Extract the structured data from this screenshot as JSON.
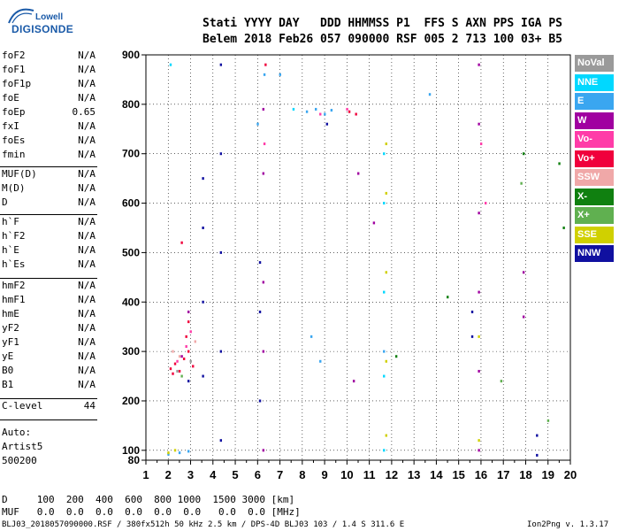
{
  "logo": {
    "lowell": "Lowell",
    "digisonde": "DIGISONDE"
  },
  "header": {
    "line1": "Stati YYYY DAY   DDD HHMMSS P1  FFS S AXN PPS IGA PS",
    "line2": "Belem 2018 Feb26 057 090000 RSF 005 2 713 100 03+ B5"
  },
  "params": [
    {
      "name": "foF2",
      "value": "N/A"
    },
    {
      "name": "foF1",
      "value": "N/A"
    },
    {
      "name": "foF1p",
      "value": "N/A"
    },
    {
      "name": "foE",
      "value": "N/A"
    },
    {
      "name": "foEp",
      "value": "0.65"
    },
    {
      "name": "fxI",
      "value": "N/A"
    },
    {
      "name": "foEs",
      "value": "N/A"
    },
    {
      "name": "fmin",
      "value": "N/A"
    },
    {
      "name": "MUF(D)",
      "value": "N/A"
    },
    {
      "name": "M(D)",
      "value": "N/A"
    },
    {
      "name": "D",
      "value": "N/A"
    },
    {
      "name": "h`F",
      "value": "N/A"
    },
    {
      "name": "h`F2",
      "value": "N/A"
    },
    {
      "name": "h`E",
      "value": "N/A"
    },
    {
      "name": "h`Es",
      "value": "N/A"
    },
    {
      "name": "hmF2",
      "value": "N/A"
    },
    {
      "name": "hmF1",
      "value": "N/A"
    },
    {
      "name": "hmE",
      "value": "N/A"
    },
    {
      "name": "yF2",
      "value": "N/A"
    },
    {
      "name": "yF1",
      "value": "N/A"
    },
    {
      "name": "yE",
      "value": "N/A"
    },
    {
      "name": "B0",
      "value": "N/A"
    },
    {
      "name": "B1",
      "value": "N/A"
    },
    {
      "name": "C-level",
      "value": "44"
    }
  ],
  "auto": {
    "line1": "Auto:",
    "line2": "Artist5",
    "line3": "500200"
  },
  "footer": {
    "d_row": "D     100  200  400  600  800 1000  1500 3000 [km]",
    "muf_row": "MUF   0.0  0.0  0.0  0.0  0.0  0.0   0.0  0.0 [MHz]",
    "file_line": "BLJ03_2018057090000.RSF / 380fx512h 50 kHz 2.5 km / DPS-4D BLJ03 103 / 1.4 S 311.6 E",
    "version": "Ion2Png v. 1.3.17"
  },
  "legend": [
    {
      "label": "NoVal",
      "color": "#9a9a9a"
    },
    {
      "label": "NNE",
      "color": "#00d8ff"
    },
    {
      "label": "E",
      "color": "#3aa6f0"
    },
    {
      "label": "W",
      "color": "#a000a0"
    },
    {
      "label": "Vo-",
      "color": "#ff3ca8"
    },
    {
      "label": "Vo+",
      "color": "#f0003c"
    },
    {
      "label": "SSW",
      "color": "#f0a8a8"
    },
    {
      "label": "X-",
      "color": "#108010"
    },
    {
      "label": "X+",
      "color": "#60b050"
    },
    {
      "label": "SSE",
      "color": "#d0d000"
    },
    {
      "label": "NNW",
      "color": "#1010a0"
    }
  ],
  "chart_data": {
    "type": "scatter",
    "xlabel": "",
    "ylabel": "",
    "x_ticks": [
      "1",
      "2",
      "3",
      "4",
      "5",
      "6",
      "7",
      "8",
      "9",
      "10",
      "11",
      "12",
      "13",
      "14",
      "15",
      "16",
      "17",
      "18",
      "19",
      "20"
    ],
    "y_ticks": [
      "80",
      "100",
      "200",
      "300",
      "400",
      "500",
      "600",
      "700",
      "800",
      "900"
    ],
    "xlim": [
      1,
      20
    ],
    "ylim": [
      80,
      900
    ],
    "grid": "dotted",
    "legend_position": "right",
    "series": [
      {
        "name": "NNW",
        "color": "#1010a0",
        "points": [
          [
            4.35,
            120
          ],
          [
            4.35,
            300
          ],
          [
            4.35,
            500
          ],
          [
            4.35,
            700
          ],
          [
            4.35,
            880
          ],
          [
            3.55,
            250
          ],
          [
            3.55,
            400
          ],
          [
            3.55,
            550
          ],
          [
            3.55,
            650
          ],
          [
            6.1,
            200
          ],
          [
            6.1,
            380
          ],
          [
            6.1,
            480
          ],
          [
            9.1,
            760
          ],
          [
            2.9,
            240
          ],
          [
            18.5,
            90
          ],
          [
            18.5,
            130
          ],
          [
            15.6,
            330
          ],
          [
            15.6,
            380
          ]
        ]
      },
      {
        "name": "W",
        "color": "#a000a0",
        "points": [
          [
            6.25,
            100
          ],
          [
            6.25,
            300
          ],
          [
            6.25,
            440
          ],
          [
            6.25,
            660
          ],
          [
            6.25,
            790
          ],
          [
            15.9,
            100
          ],
          [
            15.9,
            260
          ],
          [
            15.9,
            420
          ],
          [
            15.9,
            580
          ],
          [
            15.9,
            760
          ],
          [
            15.9,
            880
          ],
          [
            17.9,
            370
          ],
          [
            17.9,
            460
          ],
          [
            10.3,
            240
          ],
          [
            10.5,
            660
          ],
          [
            11.2,
            560
          ],
          [
            2.9,
            380
          ],
          [
            2.6,
            290
          ]
        ]
      },
      {
        "name": "Vo+",
        "color": "#f0003c",
        "points": [
          [
            2.1,
            265
          ],
          [
            2.3,
            275
          ],
          [
            2.5,
            260
          ],
          [
            2.7,
            285
          ],
          [
            2.9,
            300
          ],
          [
            3.1,
            270
          ],
          [
            2.8,
            330
          ],
          [
            2.9,
            360
          ],
          [
            2.2,
            255
          ],
          [
            10.1,
            785
          ],
          [
            10.4,
            780
          ],
          [
            6.35,
            880
          ],
          [
            2.6,
            520
          ]
        ]
      },
      {
        "name": "Vo-",
        "color": "#ff3ca8",
        "points": [
          [
            2.4,
            280
          ],
          [
            2.8,
            310
          ],
          [
            3.0,
            340
          ],
          [
            8.8,
            780
          ],
          [
            10.0,
            790
          ],
          [
            16.0,
            720
          ],
          [
            16.2,
            600
          ],
          [
            6.3,
            720
          ]
        ]
      },
      {
        "name": "E",
        "color": "#3aa6f0",
        "points": [
          [
            2.0,
            92
          ],
          [
            2.5,
            95
          ],
          [
            2.9,
            98
          ],
          [
            8.2,
            785
          ],
          [
            8.6,
            790
          ],
          [
            9.0,
            780
          ],
          [
            9.3,
            788
          ],
          [
            8.4,
            330
          ],
          [
            8.8,
            280
          ],
          [
            6.3,
            860
          ],
          [
            6.0,
            760
          ],
          [
            7.0,
            860
          ],
          [
            13.7,
            820
          ],
          [
            11.65,
            300
          ]
        ]
      },
      {
        "name": "NNE",
        "color": "#00d8ff",
        "points": [
          [
            11.65,
            100
          ],
          [
            11.65,
            250
          ],
          [
            11.65,
            420
          ],
          [
            11.65,
            600
          ],
          [
            11.65,
            700
          ],
          [
            7.6,
            790
          ],
          [
            2.1,
            880
          ]
        ]
      },
      {
        "name": "SSE",
        "color": "#d0d000",
        "points": [
          [
            11.75,
            130
          ],
          [
            11.75,
            280
          ],
          [
            11.75,
            460
          ],
          [
            11.75,
            620
          ],
          [
            11.75,
            720
          ],
          [
            15.9,
            120
          ],
          [
            15.9,
            330
          ],
          [
            2.0,
            95
          ],
          [
            2.3,
            100
          ]
        ]
      },
      {
        "name": "X-",
        "color": "#108010",
        "points": [
          [
            17.9,
            700
          ],
          [
            19.5,
            680
          ],
          [
            19.7,
            550
          ],
          [
            14.5,
            410
          ],
          [
            12.2,
            290
          ]
        ]
      },
      {
        "name": "X+",
        "color": "#60b050",
        "points": [
          [
            17.8,
            640
          ],
          [
            16.9,
            240
          ],
          [
            19.0,
            160
          ],
          [
            2.6,
            250
          ]
        ]
      },
      {
        "name": "SSW",
        "color": "#f0a8a8",
        "points": [
          [
            2.5,
            290
          ],
          [
            2.2,
            300
          ],
          [
            3.2,
            320
          ]
        ]
      },
      {
        "name": "NoVal",
        "color": "#9a9a9a",
        "points": [
          [
            2.4,
            260
          ],
          [
            3.0,
            280
          ]
        ]
      }
    ]
  }
}
